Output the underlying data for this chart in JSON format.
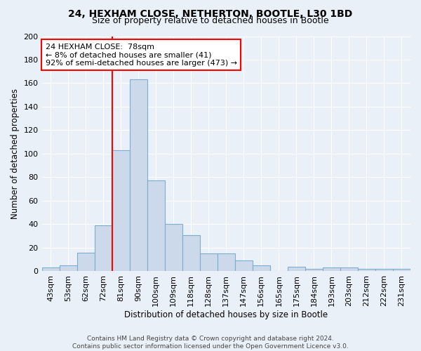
{
  "title1": "24, HEXHAM CLOSE, NETHERTON, BOOTLE, L30 1BD",
  "title2": "Size of property relative to detached houses in Bootle",
  "xlabel": "Distribution of detached houses by size in Bootle",
  "ylabel": "Number of detached properties",
  "categories": [
    "43sqm",
    "53sqm",
    "62sqm",
    "72sqm",
    "81sqm",
    "90sqm",
    "100sqm",
    "109sqm",
    "118sqm",
    "128sqm",
    "137sqm",
    "147sqm",
    "156sqm",
    "165sqm",
    "175sqm",
    "184sqm",
    "193sqm",
    "203sqm",
    "212sqm",
    "222sqm",
    "231sqm"
  ],
  "bar_values": [
    3,
    5,
    16,
    39,
    103,
    163,
    77,
    40,
    31,
    15,
    15,
    9,
    5,
    0,
    4,
    2,
    3,
    3,
    2,
    2,
    2
  ],
  "bar_color": "#ccd9ea",
  "bar_edge_color": "#7aadcf",
  "ylim": [
    0,
    200
  ],
  "yticks": [
    0,
    20,
    40,
    60,
    80,
    100,
    120,
    140,
    160,
    180,
    200
  ],
  "red_line_x": 3.5,
  "annotation_text": "24 HEXHAM CLOSE:  78sqm\n← 8% of detached houses are smaller (41)\n92% of semi-detached houses are larger (473) →",
  "annotation_box_color": "white",
  "annotation_box_edge": "red",
  "footer": "Contains HM Land Registry data © Crown copyright and database right 2024.\nContains public sector information licensed under the Open Government Licence v3.0.",
  "bg_color": "#eaf0f8",
  "plot_bg_color": "#eaf0f8",
  "title_fontsize": 10,
  "subtitle_fontsize": 9,
  "ylabel_fontsize": 8.5,
  "xlabel_fontsize": 8.5,
  "tick_fontsize": 8,
  "annot_fontsize": 8,
  "footer_fontsize": 6.5
}
